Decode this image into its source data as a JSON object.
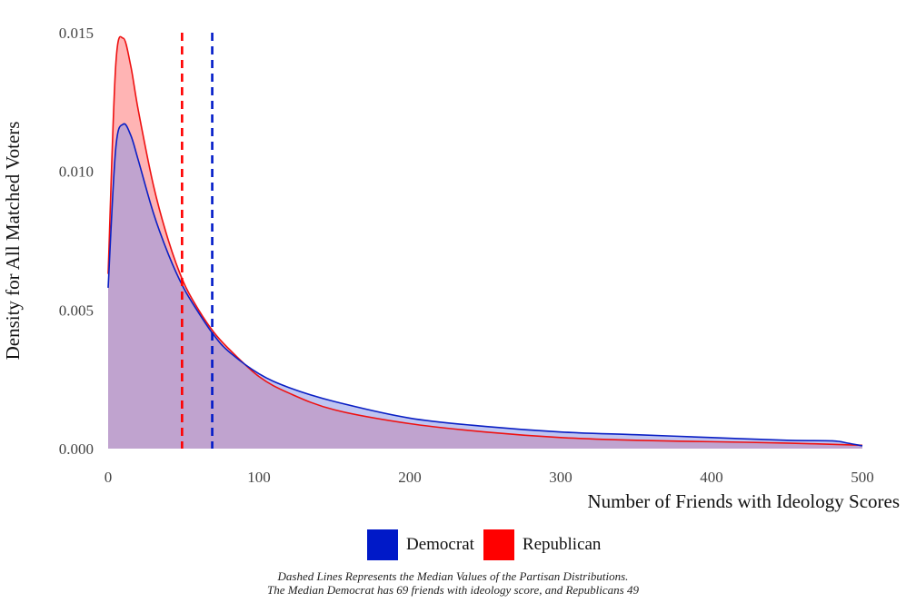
{
  "chart_data": {
    "type": "area",
    "title": "",
    "xlabel": "Number of Friends with Ideology Scores",
    "ylabel": "Density for All Matched Voters",
    "xlim": [
      0,
      500
    ],
    "ylim": [
      0,
      0.015
    ],
    "x_ticks": [
      0,
      100,
      200,
      300,
      400,
      500
    ],
    "x_tick_labels": [
      "0",
      "100",
      "200",
      "300",
      "400",
      "500"
    ],
    "y_ticks": [
      0,
      0.005,
      0.01,
      0.015
    ],
    "y_tick_labels": [
      "0.000",
      "0.005",
      "0.010",
      "0.015"
    ],
    "grid": false,
    "legend_position": "bottom",
    "series": [
      {
        "name": "Democrat",
        "line_color": "#0a1fc4",
        "fill_color": "#8c96e6",
        "median": 69,
        "x": [
          0,
          5,
          10,
          15,
          20,
          30,
          40,
          50,
          60,
          70,
          80,
          100,
          120,
          150,
          200,
          250,
          300,
          350,
          400,
          450,
          480,
          490,
          500
        ],
        "y": [
          0.0058,
          0.0108,
          0.0117,
          0.0113,
          0.0104,
          0.0085,
          0.007,
          0.0058,
          0.0049,
          0.0041,
          0.0035,
          0.0027,
          0.0022,
          0.0017,
          0.0011,
          0.0008,
          0.0006,
          0.0005,
          0.0004,
          0.0003,
          0.00028,
          0.0002,
          0.0001
        ]
      },
      {
        "name": "Republican",
        "line_color": "#ee1111",
        "fill_color": "#ffb0b0",
        "median": 49,
        "x": [
          0,
          5,
          10,
          15,
          20,
          30,
          40,
          50,
          60,
          70,
          80,
          100,
          120,
          150,
          200,
          250,
          300,
          350,
          400,
          450,
          500
        ],
        "y": [
          0.0063,
          0.0138,
          0.0148,
          0.0138,
          0.0122,
          0.0095,
          0.0075,
          0.006,
          0.005,
          0.0042,
          0.0036,
          0.0026,
          0.002,
          0.0014,
          0.0009,
          0.0006,
          0.0004,
          0.0003,
          0.00025,
          0.0002,
          0.00012
        ]
      }
    ]
  },
  "legend": {
    "items": [
      {
        "label": "Democrat",
        "color": "#0019c8"
      },
      {
        "label": "Republican",
        "color": "#ff0000"
      }
    ]
  },
  "caption": {
    "line1": "Dashed Lines Represents the Median Values of the Partisan Distributions.",
    "line2": "The Median Democrat has 69 friends with ideology score, and Republicans 49"
  }
}
